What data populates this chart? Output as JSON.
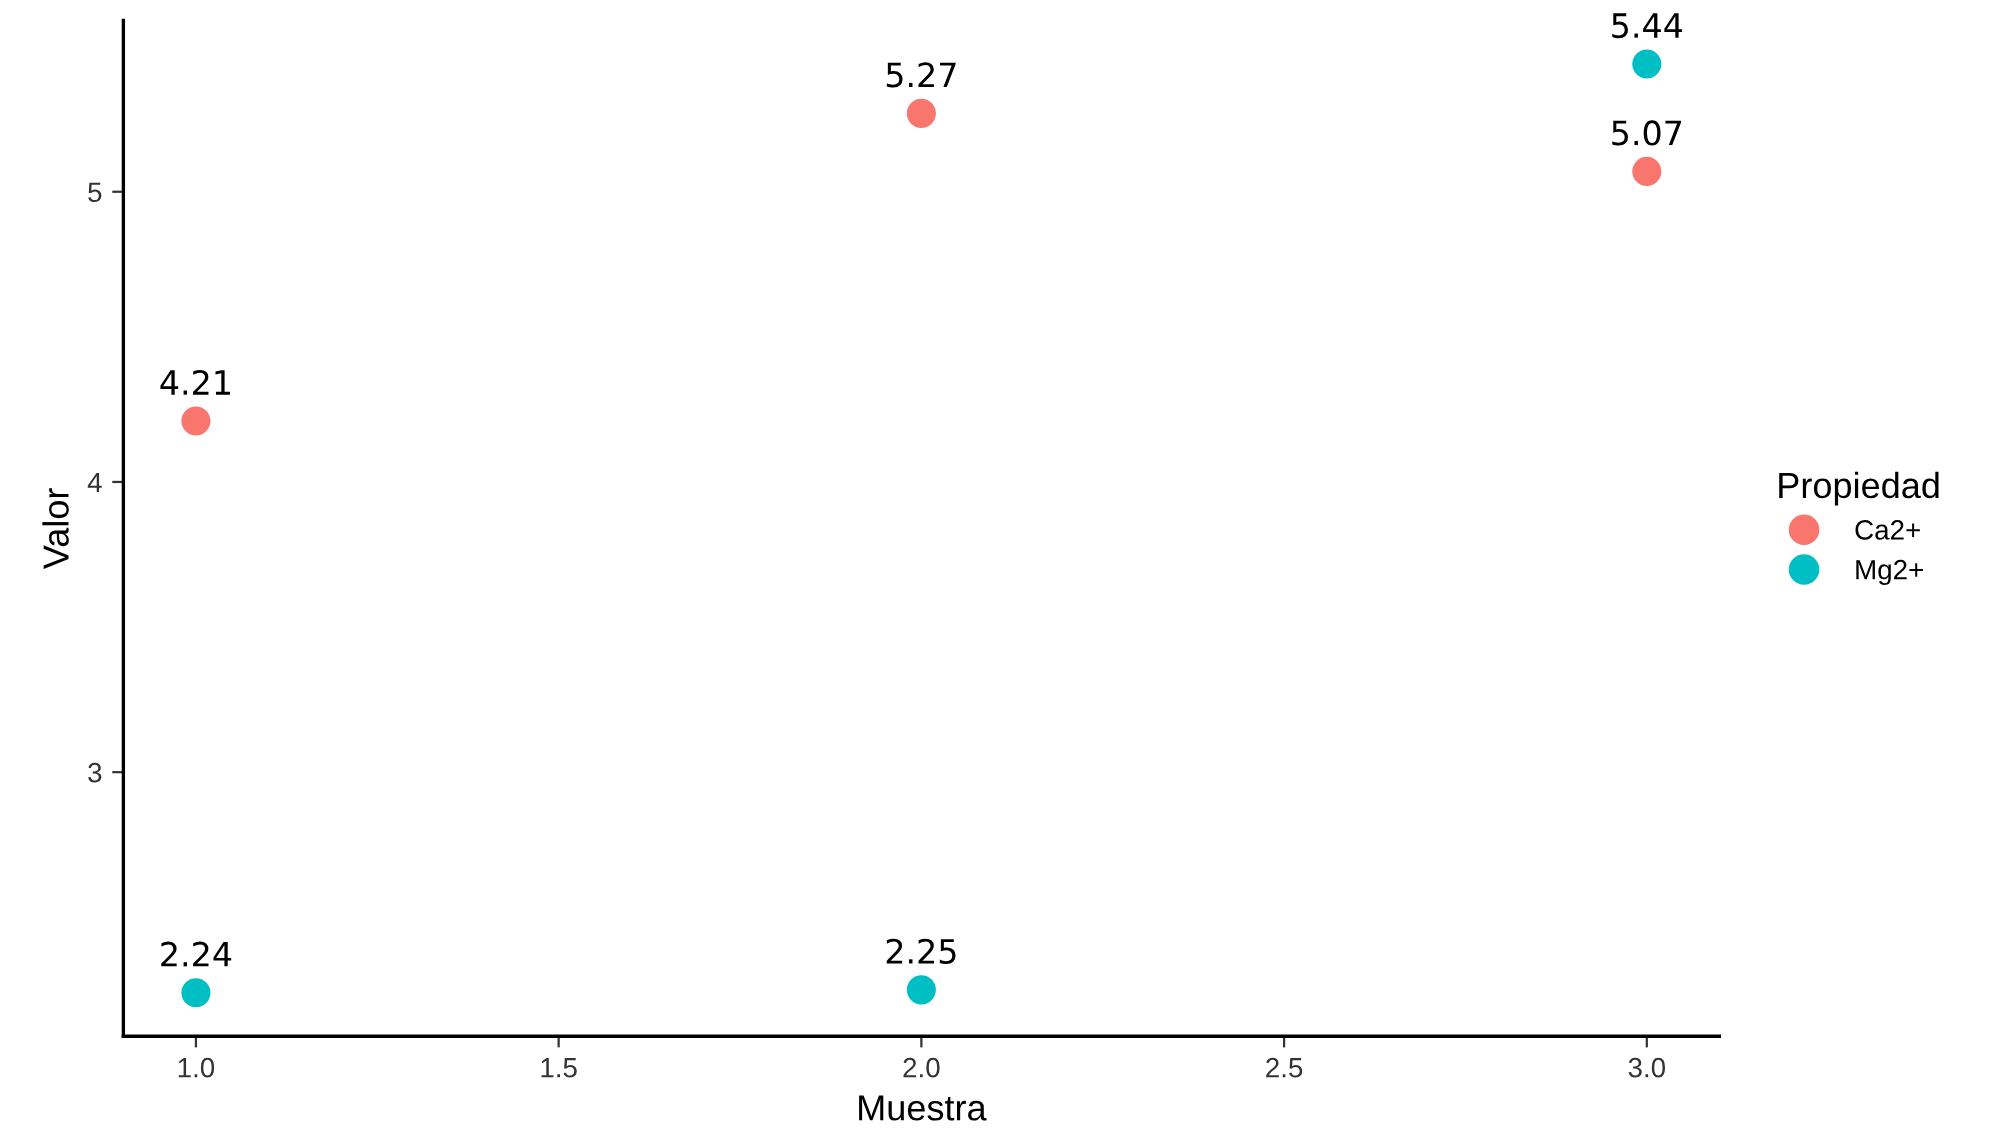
{
  "chart_data": {
    "type": "scatter",
    "xlabel": "Muestra",
    "ylabel": "Valor",
    "legend_title": "Propiedad",
    "series": [
      {
        "name": "Ca2+",
        "color": "#f8766d",
        "x": [
          1.0,
          2.0,
          3.0
        ],
        "values": [
          4.21,
          5.27,
          5.07
        ]
      },
      {
        "name": "Mg2+",
        "color": "#00bfc4",
        "x": [
          1.0,
          2.0,
          3.0
        ],
        "values": [
          2.24,
          2.25,
          5.44
        ]
      }
    ],
    "xlim": [
      0.9,
      3.1
    ],
    "xticks": [
      {
        "value": 1.0,
        "label": "1.0"
      },
      {
        "value": 1.5,
        "label": "1.5"
      },
      {
        "value": 2.0,
        "label": "2.0"
      },
      {
        "value": 2.5,
        "label": "2.5"
      },
      {
        "value": 3.0,
        "label": "3.0"
      }
    ],
    "ylim": [
      2.09,
      5.59
    ],
    "yticks": [
      3,
      4,
      5
    ],
    "data_labels": true,
    "grid": false,
    "legend": "right",
    "marker": "circle"
  }
}
